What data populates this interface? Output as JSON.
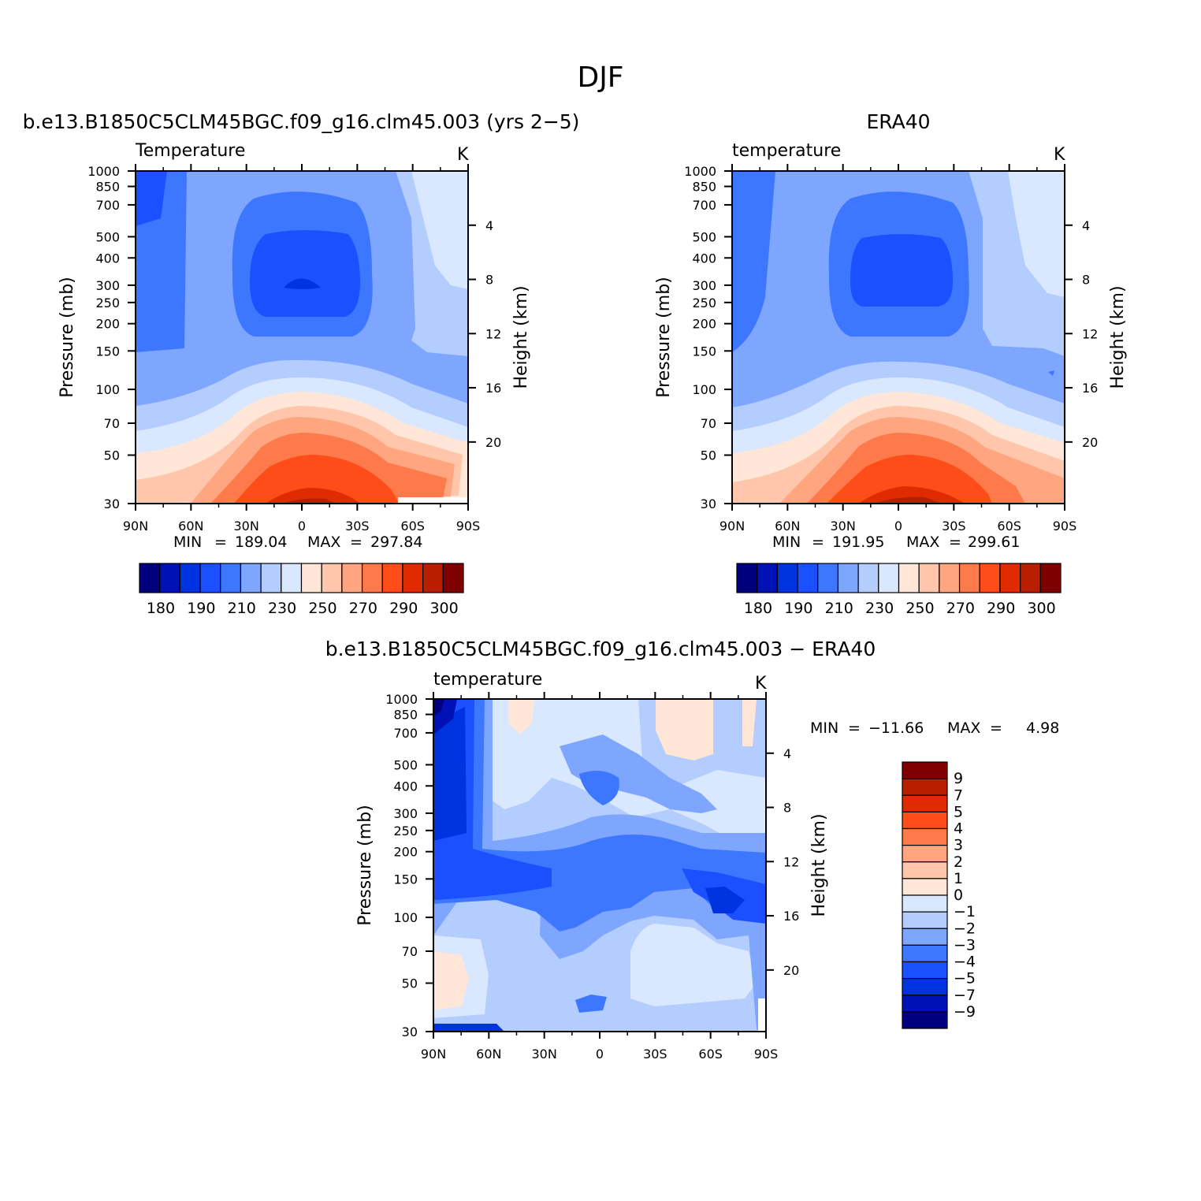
{
  "figure_title": "DJF",
  "colors": {
    "temp_fill": [
      "#00007f",
      "#0011b5",
      "#0033e0",
      "#1b4fff",
      "#3d77ff",
      "#7ea6ff",
      "#b4cdff",
      "#d9e8ff",
      "#ffe6d6",
      "#ffc6ac",
      "#ffa580",
      "#ff7a4a",
      "#ff4d1a",
      "#e02a00",
      "#b81e00",
      "#7f0000"
    ],
    "outline": "#000000"
  },
  "chart_data": [
    {
      "type": "contour",
      "id": "model",
      "title": "b.e13.B1850C5CLM45BGC.f09_g16.clm45.003 (yrs 2−5)",
      "left_label": "Temperature",
      "units_label": "K",
      "xlabel": "",
      "ylabel": "Pressure (mb)",
      "y2label": "Height (km)",
      "x_ticks": [
        "90N",
        "60N",
        "30N",
        "0",
        "30S",
        "60S",
        "90S"
      ],
      "y_ticks": [
        "30",
        "50",
        "70",
        "100",
        "150",
        "200",
        "250",
        "300",
        "400",
        "500",
        "700",
        "850",
        "1000"
      ],
      "y2_ticks": [
        "20",
        "16",
        "12",
        "8",
        "4"
      ],
      "min_label": "MIN",
      "min_value": "189.04",
      "max_label": "MAX",
      "max_value": "297.84",
      "colorbar_labels": [
        "180",
        "190",
        "210",
        "230",
        "250",
        "270",
        "290",
        "300"
      ]
    },
    {
      "type": "contour",
      "id": "obs",
      "title": "ERA40",
      "left_label": "temperature",
      "units_label": "K",
      "xlabel": "",
      "ylabel": "Pressure (mb)",
      "y2label": "Height (km)",
      "x_ticks": [
        "90N",
        "60N",
        "30N",
        "0",
        "30S",
        "60S",
        "90S"
      ],
      "y_ticks": [
        "30",
        "50",
        "70",
        "100",
        "150",
        "200",
        "250",
        "300",
        "400",
        "500",
        "700",
        "850",
        "1000"
      ],
      "y2_ticks": [
        "20",
        "16",
        "12",
        "8",
        "4"
      ],
      "min_label": "MIN",
      "min_value": "191.95",
      "max_label": "MAX",
      "max_value": "299.61",
      "colorbar_labels": [
        "180",
        "190",
        "210",
        "230",
        "250",
        "270",
        "290",
        "300"
      ]
    },
    {
      "type": "contour",
      "id": "diff",
      "title": "b.e13.B1850C5CLM45BGC.f09_g16.clm45.003 − ERA40",
      "left_label": "temperature",
      "units_label": "K",
      "xlabel": "",
      "ylabel": "Pressure (mb)",
      "y2label": "Height (km)",
      "x_ticks": [
        "90N",
        "60N",
        "30N",
        "0",
        "30S",
        "60S",
        "90S"
      ],
      "y_ticks": [
        "30",
        "50",
        "70",
        "100",
        "150",
        "200",
        "250",
        "300",
        "400",
        "500",
        "700",
        "850",
        "1000"
      ],
      "y2_ticks": [
        "20",
        "16",
        "12",
        "8",
        "4"
      ],
      "min_label": "MIN",
      "min_value": "−11.66",
      "max_label": "MAX",
      "max_value": "4.98",
      "colorbar_labels": [
        "9",
        "7",
        "5",
        "4",
        "3",
        "2",
        "1",
        "0",
        "−1",
        "−2",
        "−3",
        "−4",
        "−5",
        "−7",
        "−9"
      ]
    }
  ]
}
